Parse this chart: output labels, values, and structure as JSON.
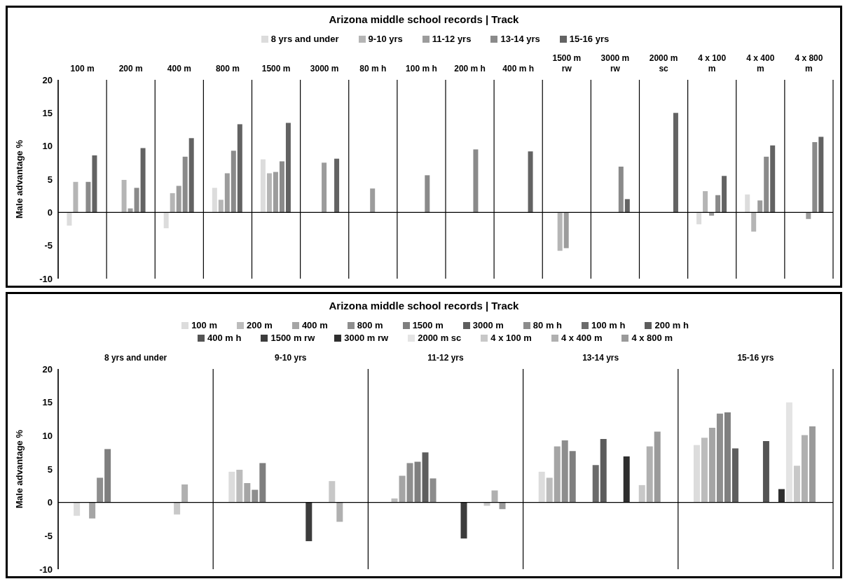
{
  "chart_data": [
    {
      "type": "bar",
      "title": "Arizona middle school records | Track",
      "ylabel": "Male advantage %",
      "categories": [
        "100 m",
        "200 m",
        "400 m",
        "800 m",
        "1500 m",
        "3000 m",
        "80 m h",
        "100 m h",
        "200 m h",
        "400 m h",
        "1500 m rw",
        "3000 m rw",
        "2000 m sc",
        "4 x 100 m",
        "4 x 400 m",
        "4 x 800 m"
      ],
      "series": [
        {
          "name": "8 yrs and under",
          "color": "#dcdcdc",
          "values": [
            -2,
            null,
            -2.4,
            3.7,
            8,
            null,
            null,
            null,
            null,
            null,
            null,
            null,
            null,
            -1.8,
            2.7,
            null
          ]
        },
        {
          "name": "9-10 yrs",
          "color": "#b5b5b5",
          "values": [
            4.6,
            4.9,
            2.9,
            1.9,
            5.9,
            null,
            null,
            null,
            null,
            null,
            -5.8,
            null,
            null,
            3.2,
            -2.9,
            null
          ]
        },
        {
          "name": "11-12 yrs",
          "color": "#9c9c9c",
          "values": [
            null,
            0.6,
            4,
            5.9,
            6.1,
            7.5,
            3.6,
            null,
            null,
            null,
            -5.4,
            null,
            null,
            -0.5,
            1.8,
            -1
          ]
        },
        {
          "name": "13-14 yrs",
          "color": "#8a8a8a",
          "values": [
            4.6,
            3.7,
            8.4,
            9.3,
            7.7,
            null,
            null,
            5.6,
            9.5,
            null,
            null,
            6.9,
            null,
            2.6,
            8.4,
            10.6
          ]
        },
        {
          "name": "15-16 yrs",
          "color": "#636363",
          "values": [
            8.6,
            9.7,
            11.2,
            13.3,
            13.5,
            8.1,
            null,
            null,
            null,
            9.2,
            null,
            2,
            15,
            5.5,
            10.1,
            11.4
          ]
        }
      ],
      "ylim": [
        -10,
        20
      ],
      "yticks": [
        -10,
        -5,
        0,
        5,
        10,
        15,
        20
      ],
      "grid": "x",
      "legend": "top",
      "ref_lines": [
        {
          "axis": "y",
          "value": 0
        }
      ]
    },
    {
      "type": "bar",
      "title": "Arizona middle school records | Track",
      "ylabel": "Male advantage %",
      "categories": [
        "8 yrs and under",
        "9-10 yrs",
        "11-12 yrs",
        "13-14 yrs",
        "15-16 yrs"
      ],
      "series": [
        {
          "name": "100 m",
          "color": "#dcdcdc",
          "values": [
            -2,
            4.6,
            null,
            4.6,
            8.6
          ]
        },
        {
          "name": "200 m",
          "color": "#bcbcbc",
          "values": [
            null,
            4.9,
            0.6,
            3.7,
            9.7
          ]
        },
        {
          "name": "400 m",
          "color": "#a5a5a5",
          "values": [
            -2.4,
            2.9,
            4,
            8.4,
            11.2
          ]
        },
        {
          "name": "800 m",
          "color": "#8e8e8e",
          "values": [
            3.7,
            1.9,
            5.9,
            9.3,
            13.3
          ]
        },
        {
          "name": "1500 m",
          "color": "#7f7f7f",
          "values": [
            8,
            5.9,
            6.1,
            7.7,
            13.5
          ]
        },
        {
          "name": "3000 m",
          "color": "#5e5e5e",
          "values": [
            null,
            null,
            7.5,
            null,
            8.1
          ]
        },
        {
          "name": "80 m h",
          "color": "#8c8c8c",
          "values": [
            null,
            null,
            3.6,
            null,
            null
          ]
        },
        {
          "name": "100 m h",
          "color": "#6b6b6b",
          "values": [
            null,
            null,
            null,
            5.6,
            null
          ]
        },
        {
          "name": "200 m h",
          "color": "#5c5c5c",
          "values": [
            null,
            null,
            null,
            9.5,
            null
          ]
        },
        {
          "name": "400 m h",
          "color": "#545454",
          "values": [
            null,
            null,
            null,
            null,
            9.2
          ]
        },
        {
          "name": "1500 m rw",
          "color": "#3c3c3c",
          "values": [
            null,
            -5.8,
            -5.4,
            null,
            null
          ]
        },
        {
          "name": "3000 m rw",
          "color": "#2e2e2e",
          "values": [
            null,
            null,
            null,
            6.9,
            2
          ]
        },
        {
          "name": "2000 m sc",
          "color": "#e4e4e4",
          "values": [
            null,
            null,
            null,
            null,
            15
          ]
        },
        {
          "name": "4 x 100 m",
          "color": "#c8c8c8",
          "values": [
            -1.8,
            3.2,
            -0.5,
            2.6,
            5.5
          ]
        },
        {
          "name": "4 x 400 m",
          "color": "#b0b0b0",
          "values": [
            2.7,
            -2.9,
            1.8,
            8.4,
            10.1
          ]
        },
        {
          "name": "4 x 800 m",
          "color": "#9a9a9a",
          "values": [
            null,
            null,
            -1,
            10.6,
            11.4
          ]
        }
      ],
      "ylim": [
        -10,
        20
      ],
      "yticks": [
        -10,
        -5,
        0,
        5,
        10,
        15,
        20
      ],
      "grid": "x",
      "legend": "top",
      "ref_lines": [
        {
          "axis": "y",
          "value": 0
        }
      ]
    }
  ]
}
